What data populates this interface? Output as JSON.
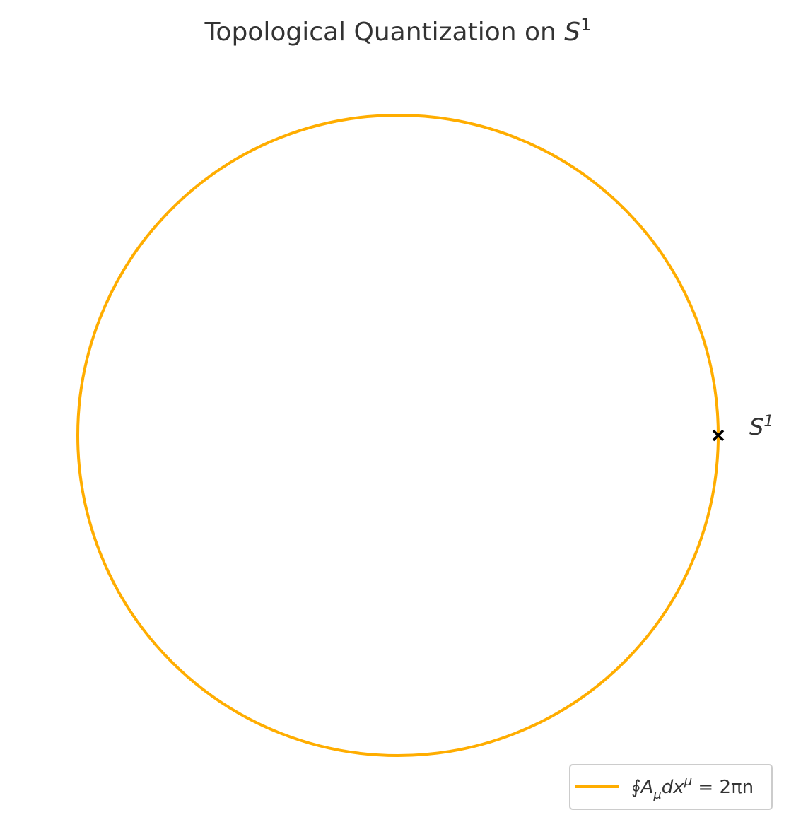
{
  "title": {
    "main": "Topological Quantization on ",
    "math_base": "S",
    "math_sup": "1"
  },
  "point_label": {
    "base": "S",
    "sup": "1"
  },
  "legend": {
    "label": "∮A",
    "label_sub": "μ",
    "label_mid": "dx",
    "label_sup": "μ",
    "label_rhs": " = 2πn"
  },
  "colors": {
    "circle": "#ffad00",
    "marker": "#000000",
    "text": "#333333"
  },
  "chart_data": {
    "type": "line",
    "series": [
      {
        "name": "∮A_μ dx^μ = 2πn",
        "shape": "unit-circle",
        "x_range": [
          -1,
          1
        ],
        "y_range": [
          -1,
          1
        ]
      }
    ],
    "marked_point": {
      "x": 1,
      "y": 0,
      "marker": "x-icon",
      "label": "S^1"
    },
    "grid": false,
    "axes_visible": false,
    "legend_placement": "lower-right",
    "aspect": "equal"
  }
}
